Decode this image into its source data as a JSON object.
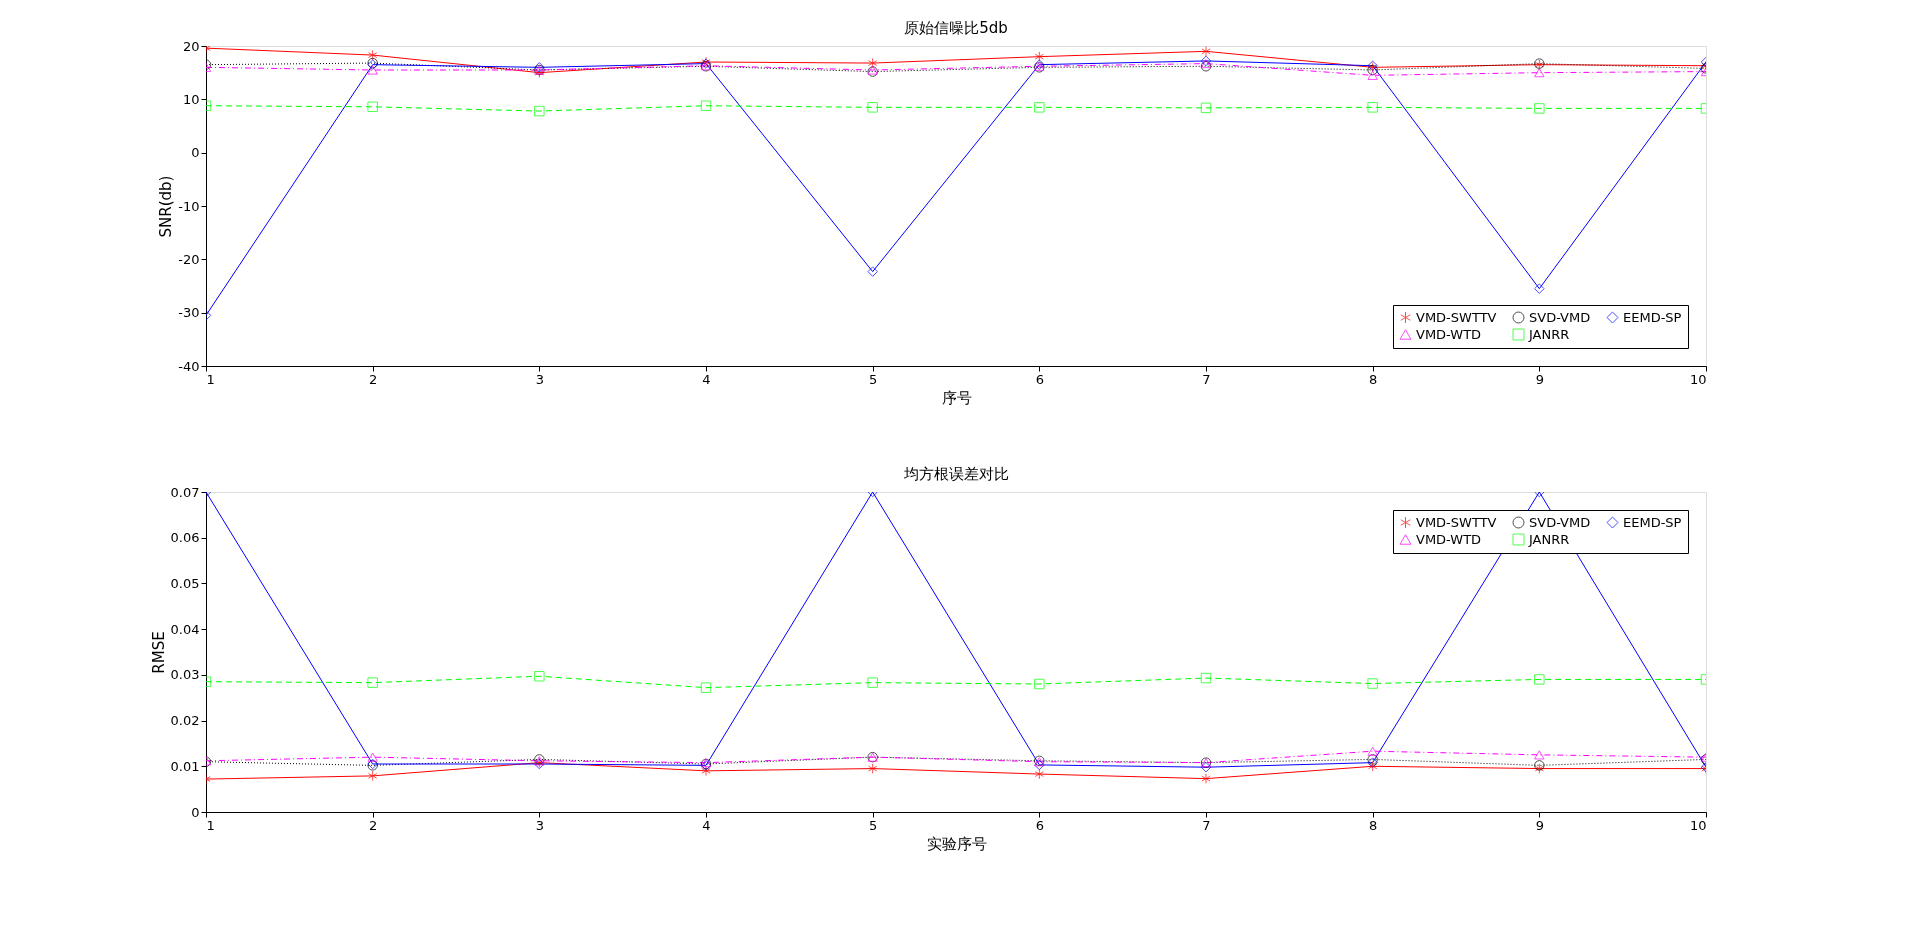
{
  "chart_data": [
    {
      "type": "line",
      "title": "原始信噪比5db",
      "xlabel": "序号",
      "ylabel": "SNR(db)",
      "x": [
        1,
        2,
        3,
        4,
        5,
        6,
        7,
        8,
        9,
        10
      ],
      "xlim": [
        1,
        10
      ],
      "xticks": [
        1,
        2,
        3,
        4,
        5,
        6,
        7,
        8,
        9,
        10
      ],
      "ylim": [
        -40,
        20
      ],
      "yticks": [
        -40,
        -30,
        -20,
        -10,
        0,
        10,
        20
      ],
      "grid": false,
      "legend": "bottom right",
      "series": [
        {
          "name": "VMD-SWTTV",
          "color": "#ff0000",
          "marker": "cross",
          "line_style": "solid",
          "values": [
            19.6,
            18.3,
            15,
            17,
            16.8,
            18,
            19,
            16,
            16.5,
            16.3
          ]
        },
        {
          "name": "SVD-VMD",
          "color": "#000000",
          "marker": "circle",
          "line_style": "dotted",
          "values": [
            16.5,
            16.8,
            15.5,
            16.2,
            15.2,
            16,
            16.2,
            15.5,
            16.7,
            15.8
          ]
        },
        {
          "name": "EEMD-SP",
          "color": "#0000ff",
          "marker": "diamond",
          "line_style": "solid",
          "values": [
            -30.5,
            16.5,
            16,
            16.7,
            -22.3,
            16.5,
            17.2,
            16.3,
            -25.5,
            17
          ]
        },
        {
          "name": "VMD-WTD",
          "color": "#ff00ff",
          "marker": "triangle",
          "line_style": "dashdot",
          "values": [
            16,
            15.5,
            15.5,
            16.3,
            15.5,
            16.2,
            16.7,
            14.5,
            15,
            15.2
          ]
        },
        {
          "name": "JANRR",
          "color": "#00ff00",
          "marker": "square",
          "line_style": "dashed",
          "values": [
            8.8,
            8.6,
            7.8,
            8.8,
            8.5,
            8.5,
            8.4,
            8.5,
            8.3,
            8.3
          ]
        }
      ]
    },
    {
      "type": "line",
      "title": "均方根误差对比",
      "xlabel": "实验序号",
      "ylabel": "RMSE",
      "x": [
        1,
        2,
        3,
        4,
        5,
        6,
        7,
        8,
        9,
        10
      ],
      "xlim": [
        1,
        10
      ],
      "xticks": [
        1,
        2,
        3,
        4,
        5,
        6,
        7,
        8,
        9,
        10
      ],
      "ylim": [
        0,
        0.07
      ],
      "yticks": [
        0,
        0.01,
        0.02,
        0.03,
        0.04,
        0.05,
        0.06,
        0.07
      ],
      "grid": false,
      "legend": "top right",
      "series": [
        {
          "name": "VMD-SWTTV",
          "color": "#ff0000",
          "marker": "cross",
          "line_style": "solid",
          "values": [
            0.0072,
            0.0079,
            0.0108,
            0.009,
            0.0095,
            0.0083,
            0.0073,
            0.01,
            0.0095,
            0.0095
          ]
        },
        {
          "name": "SVD-VMD",
          "color": "#000000",
          "marker": "circle",
          "line_style": "dotted",
          "values": [
            0.011,
            0.0102,
            0.0115,
            0.0105,
            0.012,
            0.0112,
            0.0108,
            0.0115,
            0.0102,
            0.0115
          ]
        },
        {
          "name": "EEMD-SP",
          "color": "#0000ff",
          "marker": "diamond",
          "line_style": "solid",
          "values": [
            0.07,
            0.0105,
            0.0105,
            0.0102,
            0.07,
            0.0103,
            0.0098,
            0.0108,
            0.07,
            0.0098
          ]
        },
        {
          "name": "VMD-WTD",
          "color": "#ff00ff",
          "marker": "triangle",
          "line_style": "dashdot",
          "values": [
            0.0112,
            0.012,
            0.0112,
            0.0108,
            0.012,
            0.011,
            0.0108,
            0.0133,
            0.0125,
            0.012
          ]
        },
        {
          "name": "JANRR",
          "color": "#00ff00",
          "marker": "square",
          "line_style": "dashed",
          "values": [
            0.0285,
            0.0283,
            0.0297,
            0.0272,
            0.0283,
            0.028,
            0.0293,
            0.0281,
            0.029,
            0.029
          ]
        }
      ]
    }
  ]
}
